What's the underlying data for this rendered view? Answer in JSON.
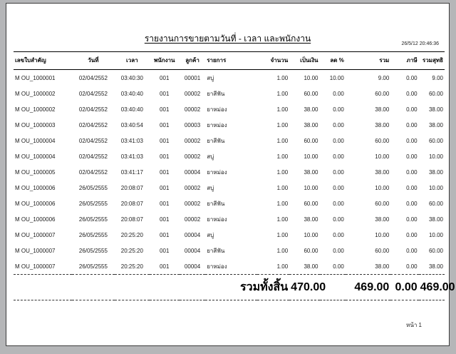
{
  "report": {
    "title": "รายงานการขายตามวันที่ - เวลา และพนักงาน",
    "printed_at": "26/5/12 20:46:36",
    "page_label": "หน้า 1",
    "columns": [
      "เลขใบสำคัญ",
      "วันที่",
      "เวลา",
      "พนักงาน",
      "ลูกค้า",
      "รายการ",
      "จำนวน",
      "เป็นเงิน",
      "ลด %",
      "รวม",
      "ภาษี",
      "รวมสุทธิ"
    ],
    "column_keys": [
      "doc-no",
      "date",
      "time",
      "employee",
      "customer",
      "item",
      "quantity",
      "amount",
      "discount-percent",
      "total",
      "tax",
      "net-total"
    ],
    "rows": [
      [
        "M OU_1000001",
        "02/04/2552",
        "03:40:30",
        "001",
        "00001",
        "สบู่",
        "1.00",
        "10.00",
        "10.00",
        "9.00",
        "0.00",
        "9.00"
      ],
      [
        "M OU_1000002",
        "02/04/2552",
        "03:40:40",
        "001",
        "00002",
        "ยาสีฟัน",
        "1.00",
        "60.00",
        "0.00",
        "60.00",
        "0.00",
        "60.00"
      ],
      [
        "M OU_1000002",
        "02/04/2552",
        "03:40:40",
        "001",
        "00002",
        "ยาหม่อง",
        "1.00",
        "38.00",
        "0.00",
        "38.00",
        "0.00",
        "38.00"
      ],
      [
        "M OU_1000003",
        "02/04/2552",
        "03:40:54",
        "001",
        "00003",
        "ยาหม่อง",
        "1.00",
        "38.00",
        "0.00",
        "38.00",
        "0.00",
        "38.00"
      ],
      [
        "M OU_1000004",
        "02/04/2552",
        "03:41:03",
        "001",
        "00002",
        "ยาสีฟัน",
        "1.00",
        "60.00",
        "0.00",
        "60.00",
        "0.00",
        "60.00"
      ],
      [
        "M OU_1000004",
        "02/04/2552",
        "03:41:03",
        "001",
        "00002",
        "สบู่",
        "1.00",
        "10.00",
        "0.00",
        "10.00",
        "0.00",
        "10.00"
      ],
      [
        "M OU_1000005",
        "02/04/2552",
        "03:41:17",
        "001",
        "00004",
        "ยาหม่อง",
        "1.00",
        "38.00",
        "0.00",
        "38.00",
        "0.00",
        "38.00"
      ],
      [
        "M OU_1000006",
        "26/05/2555",
        "20:08:07",
        "001",
        "00002",
        "สบู่",
        "1.00",
        "10.00",
        "0.00",
        "10.00",
        "0.00",
        "10.00"
      ],
      [
        "M OU_1000006",
        "26/05/2555",
        "20:08:07",
        "001",
        "00002",
        "ยาสีฟัน",
        "1.00",
        "60.00",
        "0.00",
        "60.00",
        "0.00",
        "60.00"
      ],
      [
        "M OU_1000006",
        "26/05/2555",
        "20:08:07",
        "001",
        "00002",
        "ยาหม่อง",
        "1.00",
        "38.00",
        "0.00",
        "38.00",
        "0.00",
        "38.00"
      ],
      [
        "M OU_1000007",
        "26/05/2555",
        "20:25:20",
        "001",
        "00004",
        "สบู่",
        "1.00",
        "10.00",
        "0.00",
        "10.00",
        "0.00",
        "10.00"
      ],
      [
        "M OU_1000007",
        "26/05/2555",
        "20:25:20",
        "001",
        "00004",
        "ยาสีฟัน",
        "1.00",
        "60.00",
        "0.00",
        "60.00",
        "0.00",
        "60.00"
      ],
      [
        "M OU_1000007",
        "26/05/2555",
        "20:25:20",
        "001",
        "00004",
        "ยาหม่อง",
        "1.00",
        "38.00",
        "0.00",
        "38.00",
        "0.00",
        "38.00"
      ]
    ],
    "summary": {
      "label": "รวมทั้งสิ้น",
      "amount": "470.00",
      "discount": "",
      "total": "469.00",
      "tax": "0.00",
      "net_total": "469.00"
    }
  },
  "colors": {
    "window_background": "#b5b6b8",
    "paper": "#ffffff",
    "page_border": "#3c3c3c",
    "text": "#000000"
  }
}
